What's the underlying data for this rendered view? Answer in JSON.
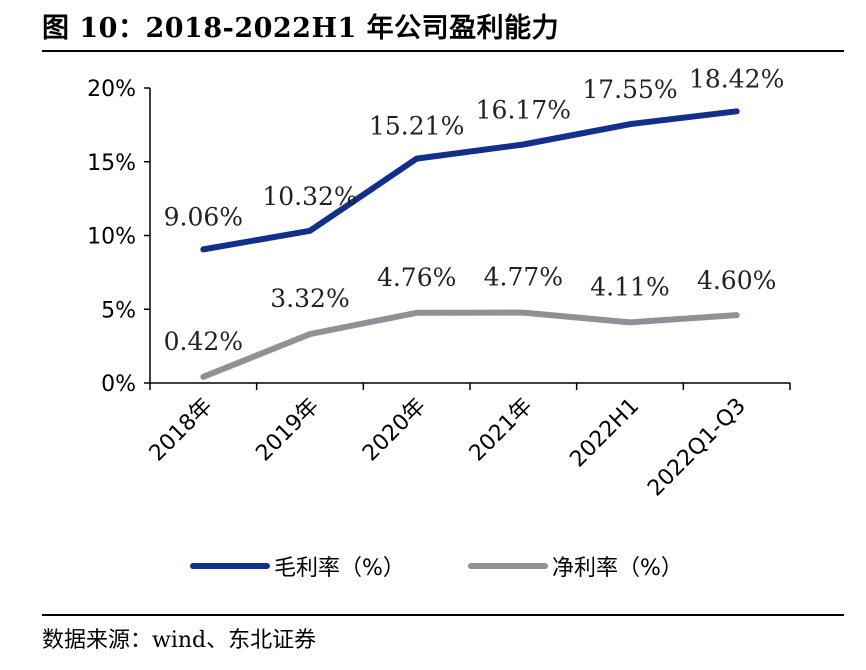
{
  "header": {
    "title": "图 10：2018-2022H1 年公司盈利能力"
  },
  "footer": {
    "source": "数据来源：wind、东北证券"
  },
  "chart_data": {
    "type": "line",
    "categories": [
      "2018年",
      "2019年",
      "2020年",
      "2021年",
      "2022H1",
      "2022Q1-Q3"
    ],
    "series": [
      {
        "name": "毛利率（%）",
        "color": "#12308a",
        "values": [
          9.06,
          10.32,
          15.21,
          16.17,
          17.55,
          18.42
        ],
        "labels": [
          "9.06%",
          "10.32%",
          "15.21%",
          "16.17%",
          "17.55%",
          "18.42%"
        ]
      },
      {
        "name": "净利率（%）",
        "color": "#8e9196",
        "values": [
          0.42,
          3.32,
          4.76,
          4.77,
          4.11,
          4.6
        ],
        "labels": [
          "0.42%",
          "3.32%",
          "4.76%",
          "4.77%",
          "4.11%",
          "4.60%"
        ]
      }
    ],
    "y_ticks": [
      0,
      5,
      10,
      15,
      20
    ],
    "y_tick_labels": [
      "0%",
      "5%",
      "10%",
      "15%",
      "20%"
    ],
    "ylim": [
      0,
      20
    ],
    "grid": false,
    "legend_position": "bottom",
    "xlabel": "",
    "ylabel": ""
  }
}
